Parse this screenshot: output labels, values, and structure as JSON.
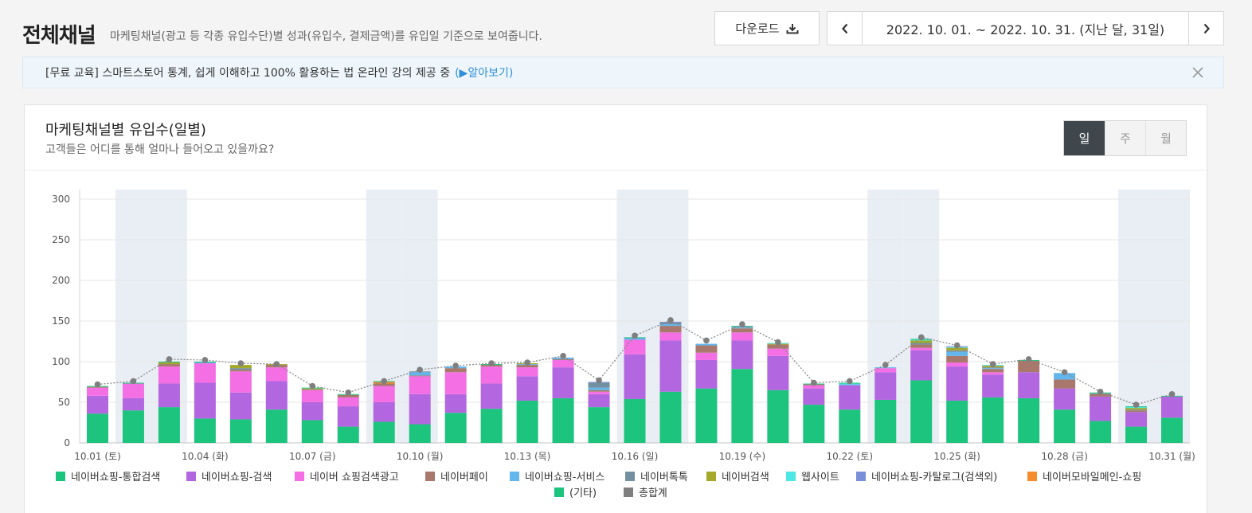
{
  "header": {
    "title": "전체채널",
    "description": "마케팅채널(광고 등 각종 유입수단)별 성과(유입수, 결제금액)를 유입일 기준으로 보여줍니다.",
    "download_label": "다운로드",
    "date_range": "2022. 10. 01. ~ 2022. 10. 31. (지난 달, 31일)"
  },
  "notice": {
    "text": "[무료 교육] 스마트스토어 통계, 쉽게 이해하고 100% 활용하는 법 온라인 강의 제공 중",
    "link": "(▶알아보기)"
  },
  "panel": {
    "title": "마케팅채널별 유입수(일별)",
    "subtitle": "고객들은 어디를 통해 얼마나 들어오고 있을까요?",
    "periods": [
      "일",
      "주",
      "월"
    ],
    "selected_period": "일"
  },
  "chart_data": {
    "type": "bar",
    "stacked": true,
    "ylim": [
      0,
      300
    ],
    "yticks": [
      0,
      50,
      100,
      150,
      200,
      250,
      300
    ],
    "x_tick_labels": [
      "10.01 (토)",
      "10.04 (화)",
      "10.07 (금)",
      "10.10 (월)",
      "10.13 (목)",
      "10.16 (일)",
      "10.19 (수)",
      "10.22 (토)",
      "10.25 (화)",
      "10.28 (금)",
      "10.31 (월)"
    ],
    "weekend_days": [
      1,
      2,
      8,
      9,
      15,
      16,
      22,
      23,
      29,
      30
    ],
    "categories": [
      "10.01",
      "10.02",
      "10.03",
      "10.04",
      "10.05",
      "10.06",
      "10.07",
      "10.08",
      "10.09",
      "10.10",
      "10.11",
      "10.12",
      "10.13",
      "10.14",
      "10.15",
      "10.16",
      "10.17",
      "10.18",
      "10.19",
      "10.20",
      "10.21",
      "10.22",
      "10.23",
      "10.24",
      "10.25",
      "10.26",
      "10.27",
      "10.28",
      "10.29",
      "10.30",
      "10.31"
    ],
    "series": [
      {
        "name": "네이버쇼핑-통합검색",
        "color": "#1cc47e",
        "values": [
          36,
          40,
          44,
          30,
          29,
          41,
          28,
          20,
          26,
          23,
          37,
          42,
          52,
          55,
          44,
          54,
          63,
          67,
          91,
          65,
          47,
          41,
          53,
          77,
          52,
          56,
          55,
          41,
          27,
          20,
          31
        ]
      },
      {
        "name": "네이버쇼핑-검색",
        "color": "#b266e0",
        "values": [
          22,
          15,
          29,
          44,
          33,
          35,
          22,
          25,
          24,
          37,
          23,
          31,
          30,
          38,
          16,
          55,
          63,
          35,
          35,
          42,
          20,
          30,
          34,
          37,
          42,
          28,
          32,
          26,
          30,
          18,
          26
        ]
      },
      {
        "name": "네이버 쇼핑검색광고",
        "color": "#f36fe3",
        "values": [
          10,
          18,
          21,
          24,
          26,
          17,
          15,
          11,
          20,
          22,
          27,
          21,
          11,
          9,
          3,
          18,
          10,
          9,
          10,
          9,
          4,
          0,
          5,
          3,
          5,
          3,
          0,
          0,
          0,
          0,
          0
        ]
      },
      {
        "name": "네이버페이",
        "color": "#a7786b",
        "values": [
          1,
          0,
          3,
          0,
          2,
          3,
          1,
          3,
          3,
          1,
          5,
          2,
          3,
          1,
          2,
          0,
          8,
          9,
          5,
          5,
          1,
          0,
          0,
          4,
          8,
          4,
          14,
          11,
          3,
          2,
          0
        ]
      },
      {
        "name": "네이버쇼핑-서비스",
        "color": "#62b6ec",
        "values": [
          0,
          0,
          0,
          1,
          0,
          0,
          0,
          0,
          0,
          4,
          2,
          0,
          1,
          2,
          3,
          2,
          2,
          2,
          1,
          0,
          0,
          1,
          1,
          0,
          5,
          1,
          0,
          8,
          0,
          0,
          0
        ]
      },
      {
        "name": "네이버톡톡",
        "color": "#738fa0",
        "values": [
          0,
          0,
          0,
          0,
          2,
          0,
          0,
          0,
          0,
          1,
          0,
          0,
          0,
          0,
          6,
          0,
          2,
          0,
          1,
          0,
          0,
          0,
          0,
          2,
          2,
          1,
          0,
          0,
          1,
          1,
          0
        ]
      },
      {
        "name": "네이버검색",
        "color": "#a5a92a",
        "values": [
          0,
          0,
          2,
          0,
          4,
          1,
          1,
          0,
          0,
          0,
          0,
          0,
          1,
          0,
          0,
          0,
          0,
          0,
          0,
          1,
          0,
          0,
          0,
          3,
          3,
          2,
          0,
          0,
          0,
          2,
          0
        ]
      },
      {
        "name": "웹사이트",
        "color": "#4de8e3",
        "values": [
          0,
          0,
          0,
          0,
          0,
          0,
          0,
          0,
          0,
          0,
          0,
          0,
          0,
          0,
          0,
          0,
          0,
          0,
          0,
          1,
          0,
          1,
          0,
          1,
          1,
          1,
          0,
          0,
          0,
          1,
          0
        ]
      },
      {
        "name": "네이버쇼핑-카탈로그(검색외)",
        "color": "#7b8fd8",
        "values": [
          0,
          0,
          0,
          0,
          0,
          0,
          0,
          0,
          0,
          0,
          0,
          0,
          0,
          0,
          1,
          0,
          1,
          0,
          0,
          0,
          0,
          0,
          0,
          0,
          1,
          0,
          0,
          0,
          0,
          0,
          0
        ]
      },
      {
        "name": "네이버모바일메인-쇼핑",
        "color": "#f58b2d",
        "values": [
          0,
          0,
          0,
          0,
          0,
          0,
          0,
          0,
          2,
          0,
          0,
          0,
          0,
          0,
          0,
          0,
          0,
          0,
          0,
          0,
          0,
          0,
          0,
          0,
          0,
          0,
          0,
          0,
          0,
          0,
          0
        ]
      },
      {
        "name": "(기타)",
        "color": "#1cc47e",
        "values": [
          1,
          1,
          1,
          1,
          0,
          0,
          1,
          1,
          1,
          0,
          0,
          1,
          0,
          0,
          0,
          1,
          0,
          0,
          1,
          0,
          1,
          1,
          0,
          1,
          0,
          0,
          1,
          0,
          1,
          1,
          1
        ]
      }
    ],
    "total": {
      "name": "총합계",
      "color": "#7f7f7f",
      "values": [
        72,
        76,
        103,
        102,
        98,
        97,
        70,
        62,
        76,
        90,
        95,
        98,
        99,
        107,
        77,
        132,
        151,
        126,
        146,
        124,
        74,
        76,
        96,
        130,
        120,
        97,
        103,
        87,
        63,
        47,
        60
      ]
    }
  }
}
